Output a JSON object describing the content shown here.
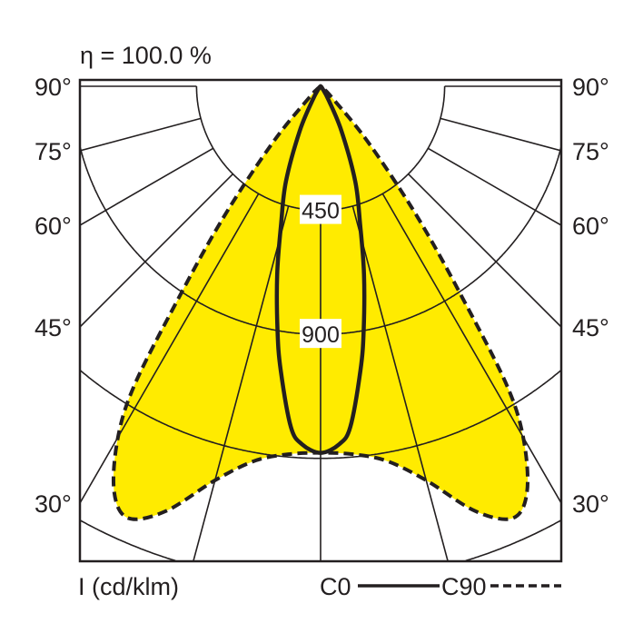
{
  "chart_data": {
    "type": "polar",
    "title": "η = 100.0 %",
    "unit_label": "I (cd/klm)",
    "radial_ticks": [
      450,
      900,
      1350,
      1800
    ],
    "radial_tick_labels": [
      "450",
      "900"
    ],
    "angle_ticks": [
      90,
      75,
      60,
      45,
      30,
      15,
      0
    ],
    "angle_labels": [
      "90°",
      "75°",
      "60°",
      "45°",
      "30°"
    ],
    "grid": true,
    "legend_position": "bottom-right",
    "fill_color": "#FFEB00",
    "line_color": "#231F20",
    "series": [
      {
        "name": "C0",
        "style": "solid",
        "angles": [
          0,
          3,
          5,
          8,
          10,
          13,
          16,
          20,
          25,
          30,
          40,
          90
        ],
        "values": [
          1330,
          1300,
          1240,
          1040,
          900,
          700,
          520,
          368,
          180,
          60,
          10,
          0
        ]
      },
      {
        "name": "C90",
        "style": "dashed",
        "filled": true,
        "angles": [
          0,
          5,
          10,
          15,
          20,
          24,
          27,
          30,
          32,
          34,
          36,
          38,
          41,
          45,
          50,
          90
        ],
        "values": [
          1330,
          1340,
          1380,
          1480,
          1640,
          1715,
          1650,
          1470,
          1265,
          900,
          650,
          440,
          230,
          60,
          20,
          0
        ]
      }
    ]
  }
}
